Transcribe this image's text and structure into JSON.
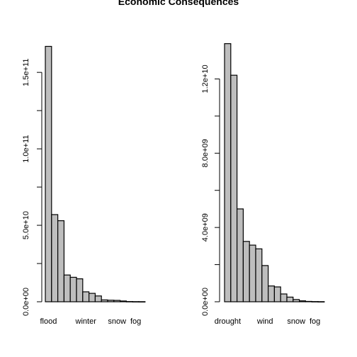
{
  "chart_data": {
    "title": "Economic Consequences",
    "panels": [
      {
        "type": "bar",
        "title": "",
        "xlabel": "",
        "ylabel": "",
        "ylim": [
          0,
          170000000000
        ],
        "yticks": [
          0,
          50000000000,
          100000000000,
          150000000000
        ],
        "ytick_labels": [
          "0.0e+00",
          "5.0e+10",
          "1.0e+11",
          "1.5e+11"
        ],
        "grid": false,
        "bar_color": "#bebebe",
        "categories": [
          "flood",
          "",
          "",
          "",
          "",
          "",
          "winter",
          "",
          "",
          "",
          "",
          "snow",
          "",
          "",
          "fog",
          ""
        ],
        "values": [
          167000000000,
          57000000000,
          53000000000,
          17500000000,
          16000000000,
          15000000000,
          6500000000,
          5500000000,
          3800000000,
          1200000000,
          1000000000,
          900000000,
          500000000,
          150000000,
          80000000,
          50000000
        ]
      },
      {
        "type": "bar",
        "title": "",
        "xlabel": "",
        "ylabel": "",
        "ylim": [
          0,
          14000000000
        ],
        "yticks": [
          0,
          4000000000,
          8000000000,
          12000000000
        ],
        "ytick_labels": [
          "0.0e+00",
          "4.0e+09",
          "8.0e+09",
          "1.2e+10"
        ],
        "grid": false,
        "bar_color": "#bebebe",
        "categories": [
          "drought",
          "",
          "",
          "",
          "",
          "",
          "wind",
          "",
          "",
          "",
          "",
          "snow",
          "",
          "",
          "fog",
          ""
        ],
        "values": [
          13900000000,
          12200000000,
          5000000000,
          3250000000,
          3050000000,
          2850000000,
          1950000000,
          850000000,
          800000000,
          420000000,
          250000000,
          120000000,
          50000000,
          20000000,
          10000000,
          5000000
        ]
      }
    ]
  }
}
